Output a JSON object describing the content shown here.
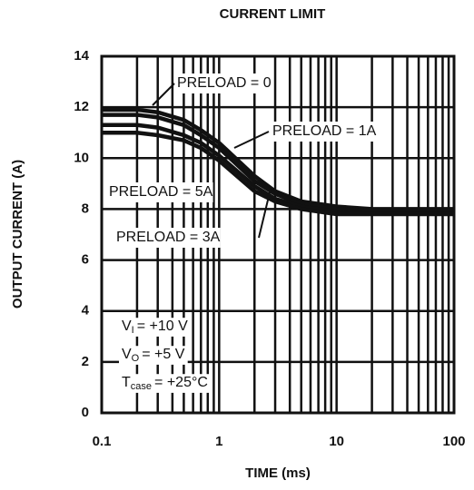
{
  "chart_data": {
    "type": "line",
    "title": "CURRENT LIMIT",
    "x_label": "TIME (ms)",
    "y_label": "OUTPUT CURRENT (A)",
    "log_x": true,
    "grid": true,
    "x": [
      0.1,
      0.2,
      0.3,
      0.5,
      0.7,
      1,
      2,
      3,
      5,
      10,
      20,
      50,
      100
    ],
    "series": [
      {
        "name": "PRELOAD = 0",
        "color": "#111111",
        "values": [
          11.9,
          11.9,
          11.8,
          11.5,
          11.1,
          10.6,
          9.3,
          8.7,
          8.3,
          8.1,
          8.0,
          8.0,
          8.0
        ]
      },
      {
        "name": "PRELOAD = 1A",
        "color": "#111111",
        "values": [
          11.7,
          11.7,
          11.6,
          11.3,
          10.9,
          10.4,
          9.1,
          8.6,
          8.2,
          8.0,
          7.95,
          7.95,
          7.95
        ]
      },
      {
        "name": "PRELOAD = 5A",
        "color": "#111111",
        "values": [
          11.3,
          11.3,
          11.2,
          10.9,
          10.6,
          10.1,
          8.9,
          8.4,
          8.1,
          7.9,
          7.85,
          7.85,
          7.85
        ]
      },
      {
        "name": "PRELOAD = 3A",
        "color": "#111111",
        "values": [
          11.0,
          11.0,
          10.9,
          10.7,
          10.4,
          9.9,
          8.7,
          8.3,
          8.0,
          7.8,
          7.8,
          7.8,
          7.8
        ]
      }
    ],
    "conditions": [
      {
        "symbol": "V",
        "sub": "I",
        "text": "= +10 V"
      },
      {
        "symbol": "V",
        "sub": "O",
        "text": "= +5 V"
      },
      {
        "symbol": "T",
        "sub": "case",
        "text": "= +25°C"
      }
    ],
    "xlim": [
      0.1,
      100
    ],
    "xticks": [
      0.1,
      1,
      10,
      100
    ],
    "ylim": [
      0,
      14
    ],
    "yticks": [
      0,
      2,
      4,
      6,
      8,
      10,
      12,
      14
    ]
  }
}
